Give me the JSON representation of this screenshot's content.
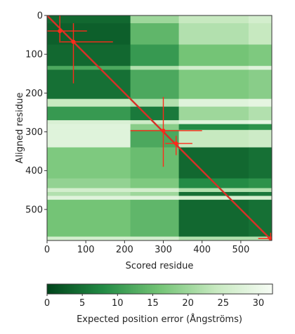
{
  "chart_data": {
    "type": "heatmap",
    "title": "",
    "xlabel": "Scored residue",
    "ylabel": "Aligned residue",
    "xlim": [
      0,
      580
    ],
    "ylim": [
      0,
      580
    ],
    "y_inverted": true,
    "x_ticks": [
      0,
      100,
      200,
      300,
      400,
      500
    ],
    "y_ticks": [
      0,
      100,
      200,
      300,
      400,
      500
    ],
    "colorbar": {
      "label": "Expected position error (Ångströms)",
      "range": [
        0,
        32
      ],
      "ticks": [
        0,
        5,
        10,
        15,
        20,
        25,
        30
      ],
      "colors": [
        "#00441b",
        "#238b45",
        "#74c476",
        "#c7e9c0",
        "#f7fcf5"
      ]
    },
    "domains": [
      {
        "name": "",
        "start": 0,
        "end": 215
      },
      {
        "name": "",
        "start": 215,
        "end": 340
      },
      {
        "name": "",
        "start": 340,
        "end": 580
      }
    ],
    "rows": [
      {
        "label": "",
        "start": 0,
        "end": 20,
        "values": [
          4,
          20,
          24,
          26
        ]
      },
      {
        "label": "",
        "start": 20,
        "end": 75,
        "values": [
          3,
          14,
          22,
          24
        ]
      },
      {
        "label": "",
        "start": 75,
        "end": 130,
        "values": [
          4,
          10,
          16,
          17
        ]
      },
      {
        "label": "",
        "start": 130,
        "end": 140,
        "values": [
          12,
          22,
          26,
          28
        ]
      },
      {
        "label": "",
        "start": 140,
        "end": 215,
        "values": [
          5,
          12,
          17,
          18
        ]
      },
      {
        "label": "",
        "start": 215,
        "end": 235,
        "values": [
          24,
          22,
          28,
          29
        ]
      },
      {
        "label": "",
        "start": 235,
        "end": 270,
        "values": [
          10,
          6,
          20,
          22
        ]
      },
      {
        "label": "",
        "start": 270,
        "end": 280,
        "values": [
          27,
          25,
          28,
          29
        ]
      },
      {
        "label": "",
        "start": 280,
        "end": 295,
        "values": [
          28,
          18,
          8,
          9
        ]
      },
      {
        "label": "",
        "start": 295,
        "end": 340,
        "values": [
          28,
          12,
          24,
          25
        ]
      },
      {
        "label": "",
        "start": 340,
        "end": 420,
        "values": [
          17,
          15,
          4,
          5
        ]
      },
      {
        "label": "",
        "start": 420,
        "end": 445,
        "values": [
          19,
          17,
          8,
          9
        ]
      },
      {
        "label": "",
        "start": 445,
        "end": 455,
        "values": [
          26,
          26,
          22,
          22
        ]
      },
      {
        "label": "",
        "start": 455,
        "end": 465,
        "values": [
          22,
          20,
          5,
          6
        ]
      },
      {
        "label": "",
        "start": 465,
        "end": 475,
        "values": [
          28,
          28,
          26,
          26
        ]
      },
      {
        "label": "",
        "start": 475,
        "end": 570,
        "values": [
          16,
          14,
          4,
          5
        ]
      },
      {
        "label": "",
        "start": 570,
        "end": 580,
        "values": [
          26,
          26,
          22,
          22
        ]
      }
    ],
    "column_splits": [
      0,
      215,
      340,
      520,
      580
    ],
    "diagonal_color": "#d73027",
    "error_crosses": [
      {
        "x": 33,
        "y": 40,
        "x_err": [
          0,
          103
        ],
        "y_err": [
          0,
          70
        ]
      },
      {
        "x": 68,
        "y": 68,
        "x_err": [
          35,
          170
        ],
        "y_err": [
          20,
          175
        ]
      },
      {
        "x": 300,
        "y": 297,
        "x_err": [
          215,
          400
        ],
        "y_err": [
          210,
          390
        ]
      },
      {
        "x": 333,
        "y": 330,
        "x_err": [
          305,
          375
        ],
        "y_err": [
          310,
          360
        ]
      },
      {
        "x": 577,
        "y": 575,
        "x_err": [
          545,
          585
        ],
        "y_err": [
          560,
          585
        ]
      }
    ],
    "error_color": "#ff2a1a"
  }
}
